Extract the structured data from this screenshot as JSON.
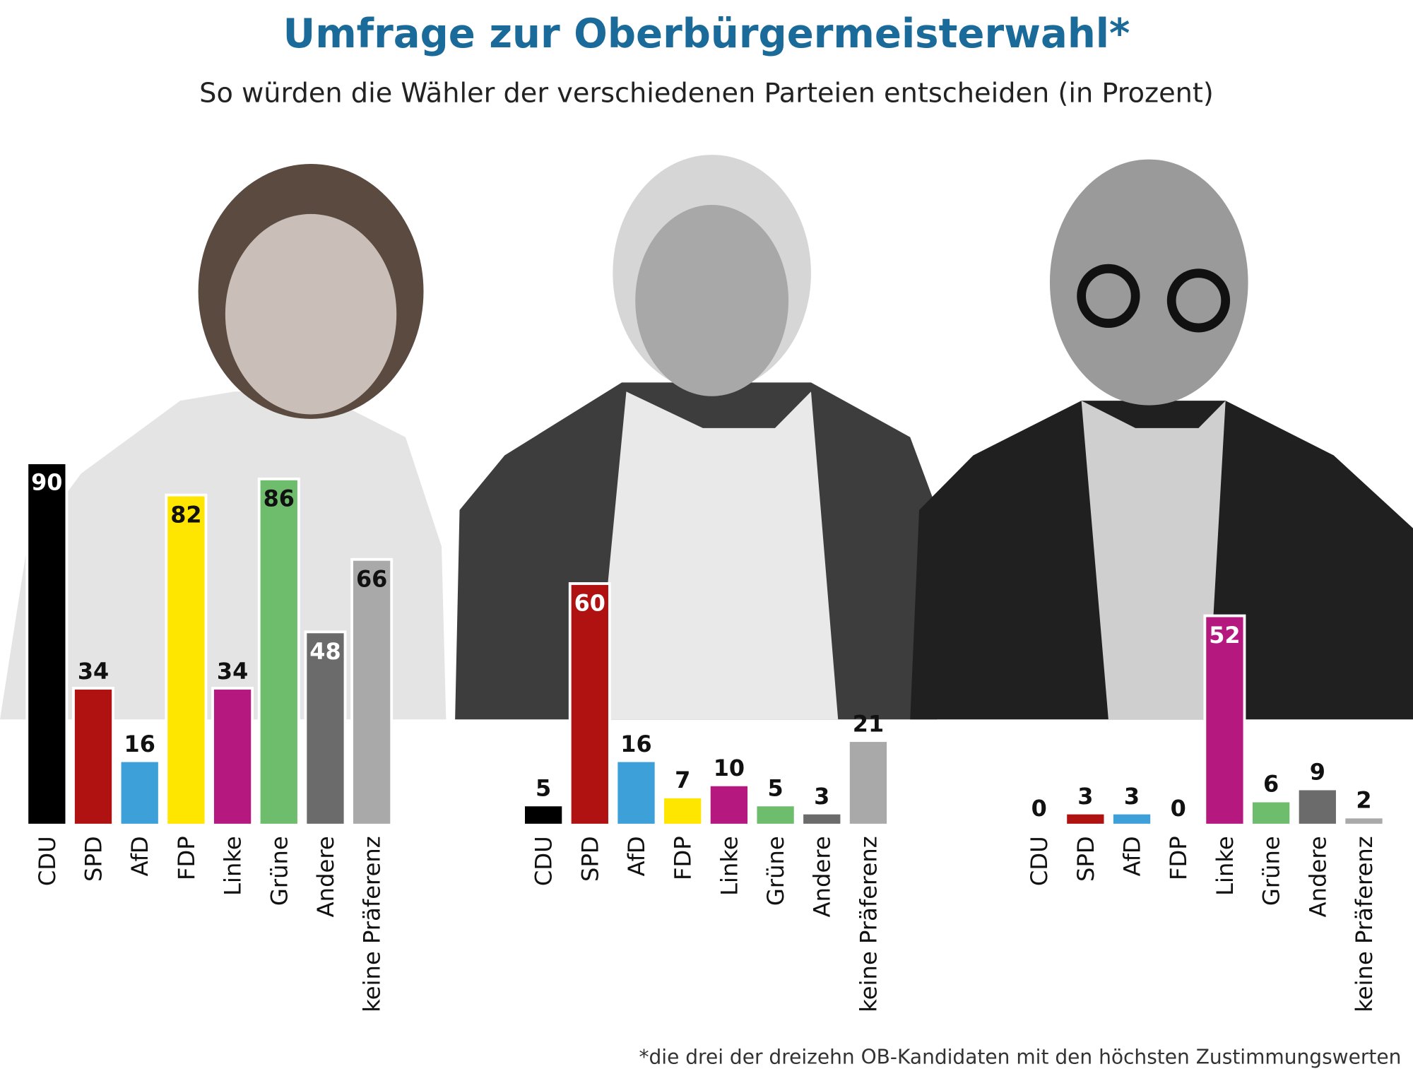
{
  "title": "Umfrage zur Oberbürgermeisterwahl*",
  "subtitle": "So würden die Wähler der verschiedenen Parteien entscheiden (in Prozent)",
  "footnote": "*die drei der dreizehn OB-Kandidaten mit den höchsten Zustimmungswerten",
  "chart_data": [
    {
      "type": "bar",
      "categories": [
        "CDU",
        "SPD",
        "AfD",
        "FDP",
        "Linke",
        "Grüne",
        "Andere",
        "keine Präferenz"
      ],
      "values": [
        90,
        34,
        16,
        82,
        34,
        86,
        48,
        66
      ],
      "colors": [
        "#000000",
        "#b01111",
        "#3ea0d8",
        "#ffe600",
        "#b5187f",
        "#6dbd6d",
        "#6b6b6b",
        "#a9a9a9"
      ]
    },
    {
      "type": "bar",
      "categories": [
        "CDU",
        "SPD",
        "AfD",
        "FDP",
        "Linke",
        "Grüne",
        "Andere",
        "keine Präferenz"
      ],
      "values": [
        5,
        60,
        16,
        7,
        10,
        5,
        3,
        21
      ],
      "colors": [
        "#000000",
        "#b01111",
        "#3ea0d8",
        "#ffe600",
        "#b5187f",
        "#6dbd6d",
        "#6b6b6b",
        "#a9a9a9"
      ]
    },
    {
      "type": "bar",
      "categories": [
        "CDU",
        "SPD",
        "AfD",
        "FDP",
        "Linke",
        "Grüne",
        "Andere",
        "keine Präferenz"
      ],
      "values": [
        0,
        3,
        3,
        0,
        52,
        6,
        9,
        2
      ],
      "colors": [
        "#000000",
        "#b01111",
        "#3ea0d8",
        "#ffe600",
        "#b5187f",
        "#6dbd6d",
        "#6b6b6b",
        "#a9a9a9"
      ]
    }
  ]
}
